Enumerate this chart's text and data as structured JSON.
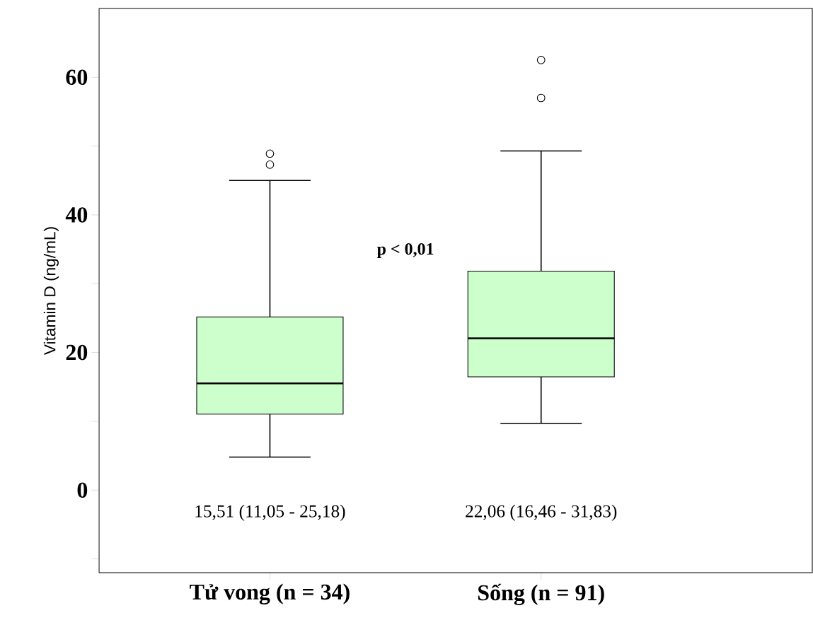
{
  "chart_data": {
    "type": "box",
    "categories": [
      "Tử vong (n = 34)",
      "Sống (n = 91)"
    ],
    "ylabel": "Vitamin D (ng/mL)",
    "ylim": [
      -12,
      70
    ],
    "yticks": [
      {
        "value": -10,
        "label": null
      },
      0,
      {
        "value": 10,
        "label": null
      },
      20,
      {
        "value": 30,
        "label": null
      },
      40,
      {
        "value": 50,
        "label": null
      },
      60
    ],
    "series": [
      {
        "color": "#ccffcc",
        "boxes": [
          {
            "low": 4.8,
            "q1": 11.05,
            "median": 15.51,
            "q3": 25.18,
            "high": 45.0,
            "outliers": [
              47.3,
              48.9
            ]
          },
          {
            "low": 9.7,
            "q1": 16.46,
            "median": 22.06,
            "q3": 31.83,
            "high": 49.3,
            "outliers": [
              57.0,
              62.5
            ]
          }
        ]
      }
    ],
    "annotations": [
      "p < 0,01",
      "15,51 (11,05 - 25,18)",
      "22,06 (16,46 - 31,83)"
    ]
  }
}
